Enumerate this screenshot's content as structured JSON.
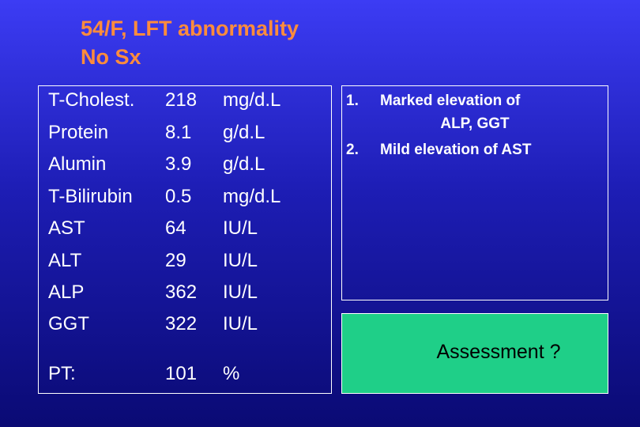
{
  "title": {
    "line1": "54/F, LFT abnormality",
    "line2": "No Sx"
  },
  "labs": [
    {
      "name": "T-Cholest.",
      "value": "218",
      "unit": "mg/d.L"
    },
    {
      "name": "Protein",
      "value": "8.1",
      "unit": "g/d.L"
    },
    {
      "name": "Alumin",
      "value": "3.9",
      "unit": "g/d.L"
    },
    {
      "name": "T-Bilirubin",
      "value": "0.5",
      "unit": "mg/d.L"
    },
    {
      "name": "AST",
      "value": "64",
      "unit": "IU/L"
    },
    {
      "name": "ALT",
      "value": "29",
      "unit": "IU/L"
    },
    {
      "name": "ALP",
      "value": "362",
      "unit": "IU/L"
    },
    {
      "name": "GGT",
      "value": "322",
      "unit": "IU/L"
    }
  ],
  "pt": {
    "name": "PT:",
    "value": "101",
    "unit": "%"
  },
  "findings": [
    {
      "num": "1.",
      "line1": "Marked elevation of",
      "line2": "ALP, GGT"
    },
    {
      "num": "2.",
      "line1": "Mild elevation of AST"
    }
  ],
  "assessment": "Assessment ?",
  "colors": {
    "title": "#ff8c3c",
    "assessment_bg": "#1fcf88",
    "text": "#ffffff"
  }
}
